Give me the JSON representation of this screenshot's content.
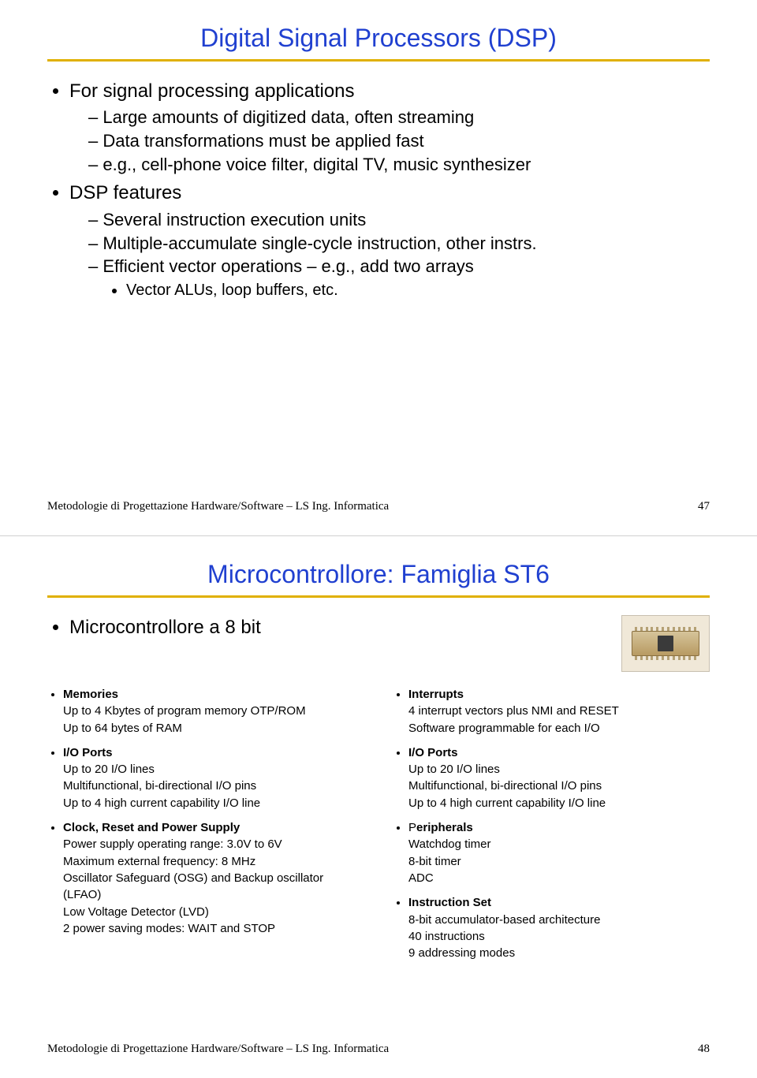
{
  "slide1": {
    "title": "Digital Signal Processors (DSP)",
    "title_color": "#2040d0",
    "rule_color": "#e0b000",
    "bullets": [
      {
        "text": "For signal processing applications",
        "sub": [
          {
            "text": "Large amounts of digitized data, often streaming"
          },
          {
            "text": "Data transformations must be applied fast"
          },
          {
            "text": "e.g., cell-phone voice filter, digital TV, music synthesizer"
          }
        ]
      },
      {
        "text": "DSP features",
        "sub": [
          {
            "text": "Several instruction execution units"
          },
          {
            "text": "Multiple-accumulate single-cycle instruction, other instrs."
          },
          {
            "text": "Efficient vector operations – e.g., add two arrays",
            "sub": [
              {
                "text": "Vector ALUs, loop buffers, etc."
              }
            ]
          }
        ]
      }
    ],
    "footer": "Metodologie di Progettazione Hardware/Software – LS Ing. Informatica",
    "page": "47"
  },
  "slide2": {
    "title": "Microcontrollore: Famiglia ST6",
    "title_color": "#2040d0",
    "rule_color": "#e0b000",
    "main_bullet": "Microcontrollore a 8 bit",
    "left": [
      {
        "head": "Memories",
        "lines": [
          "Up to 4 Kbytes of program memory OTP/ROM",
          "Up to 64 bytes of RAM"
        ]
      },
      {
        "head": "I/O Ports",
        "lines": [
          "Up to 20 I/O lines",
          "Multifunctional, bi-directional I/O pins",
          "Up to 4 high current capability I/O line"
        ]
      },
      {
        "head": "Clock, Reset and Power Supply",
        "lines": [
          "Power supply operating range: 3.0V to 6V",
          "Maximum external frequency: 8 MHz",
          "Oscillator Safeguard (OSG) and Backup oscillator (LFAO)",
          "Low Voltage Detector (LVD)",
          "2 power saving modes: WAIT and STOP"
        ]
      }
    ],
    "right": [
      {
        "head": "Interrupts",
        "lines": [
          "4 interrupt vectors plus NMI and RESET",
          "Software programmable for each I/O"
        ]
      },
      {
        "head": "I/O Ports",
        "lines": [
          "Up to 20 I/O lines",
          "Multifunctional, bi-directional I/O pins",
          "Up to 4 high current capability I/O line"
        ]
      },
      {
        "head_prefix": "P",
        "head": "eripherals",
        "lines": [
          "Watchdog timer",
          "8-bit timer",
          "ADC"
        ]
      },
      {
        "head": "Instruction Set",
        "lines": [
          "8-bit accumulator-based architecture",
          "40 instructions",
          "9 addressing modes"
        ]
      }
    ],
    "footer": "Metodologie di Progettazione Hardware/Software – LS Ing. Informatica",
    "page": "48"
  }
}
